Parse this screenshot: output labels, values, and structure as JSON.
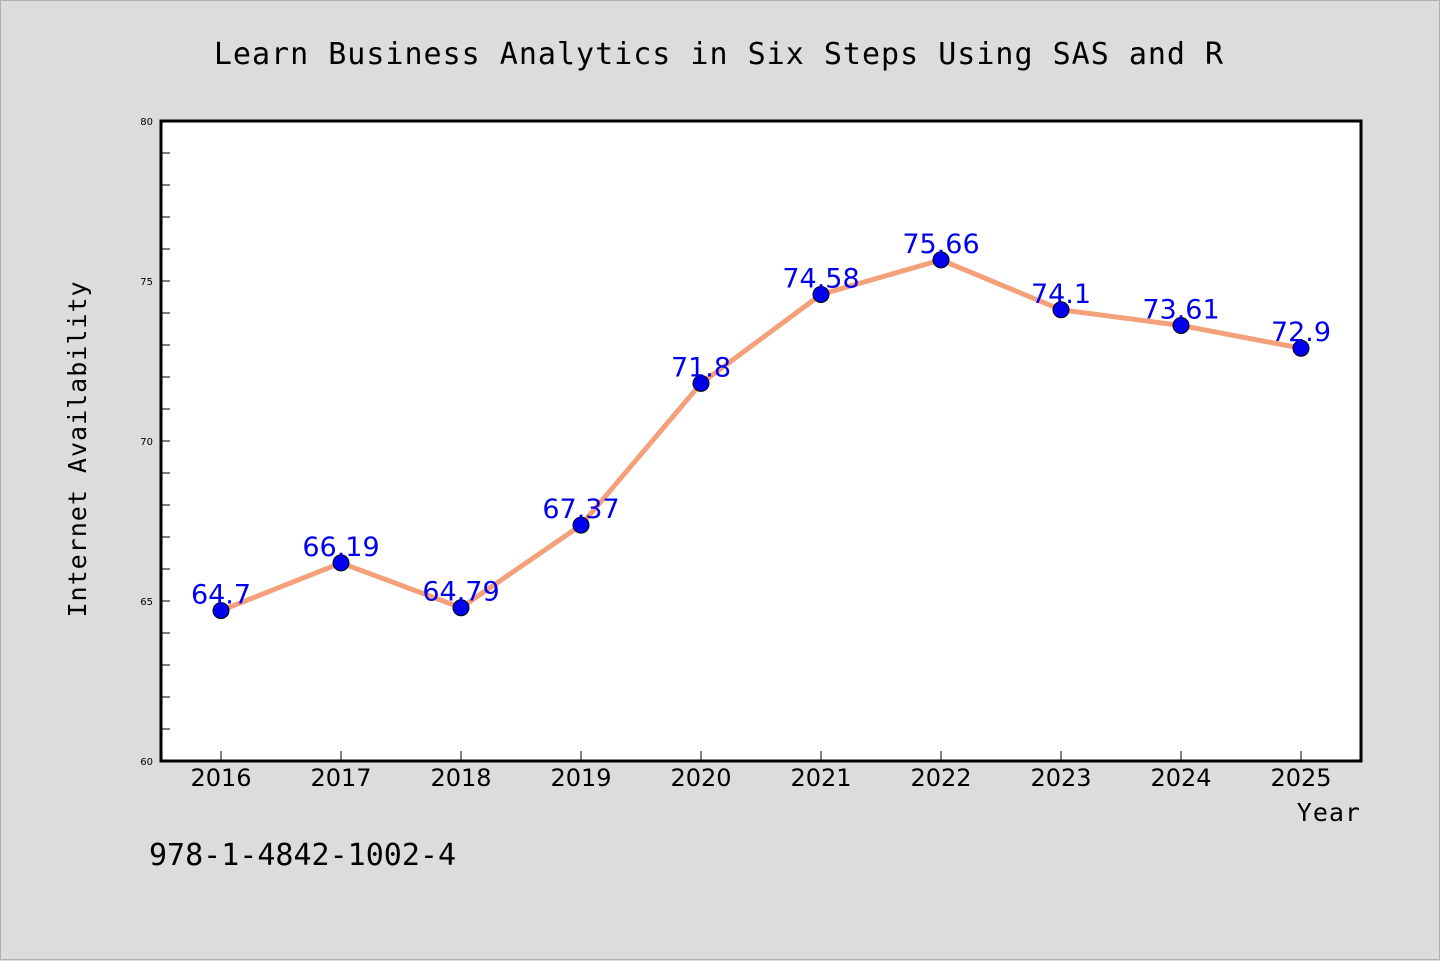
{
  "chart_data": {
    "type": "line",
    "title": "Learn Business Analytics in Six Steps Using SAS and R",
    "xlabel": "Year",
    "ylabel": "Internet Availability",
    "categories": [
      "2016",
      "2017",
      "2018",
      "2019",
      "2020",
      "2021",
      "2022",
      "2023",
      "2024",
      "2025"
    ],
    "series": [
      {
        "values": [
          64.7,
          66.19,
          64.79,
          67.37,
          71.8,
          74.58,
          75.66,
          74.1,
          73.61,
          72.9
        ],
        "line_color": "#f4a07a",
        "marker_color": "#0000ee"
      }
    ],
    "data_labels": [
      "64.7",
      "66.19",
      "64.79",
      "67.37",
      "71.8",
      "74.58",
      "75.66",
      "74.1",
      "73.61",
      "72.9"
    ],
    "ylim": [
      60,
      80
    ],
    "yticks": [
      "60",
      "65",
      "70",
      "75",
      "80"
    ],
    "grid": false,
    "legend": "none"
  },
  "footer": {
    "isbn": "978-1-4842-1002-4"
  },
  "colors": {
    "background": "#dcdcdc",
    "plot_area": "#ffffff",
    "line": "#f4a07a",
    "marker": "#0000ee",
    "data_label": "#0000ee"
  }
}
